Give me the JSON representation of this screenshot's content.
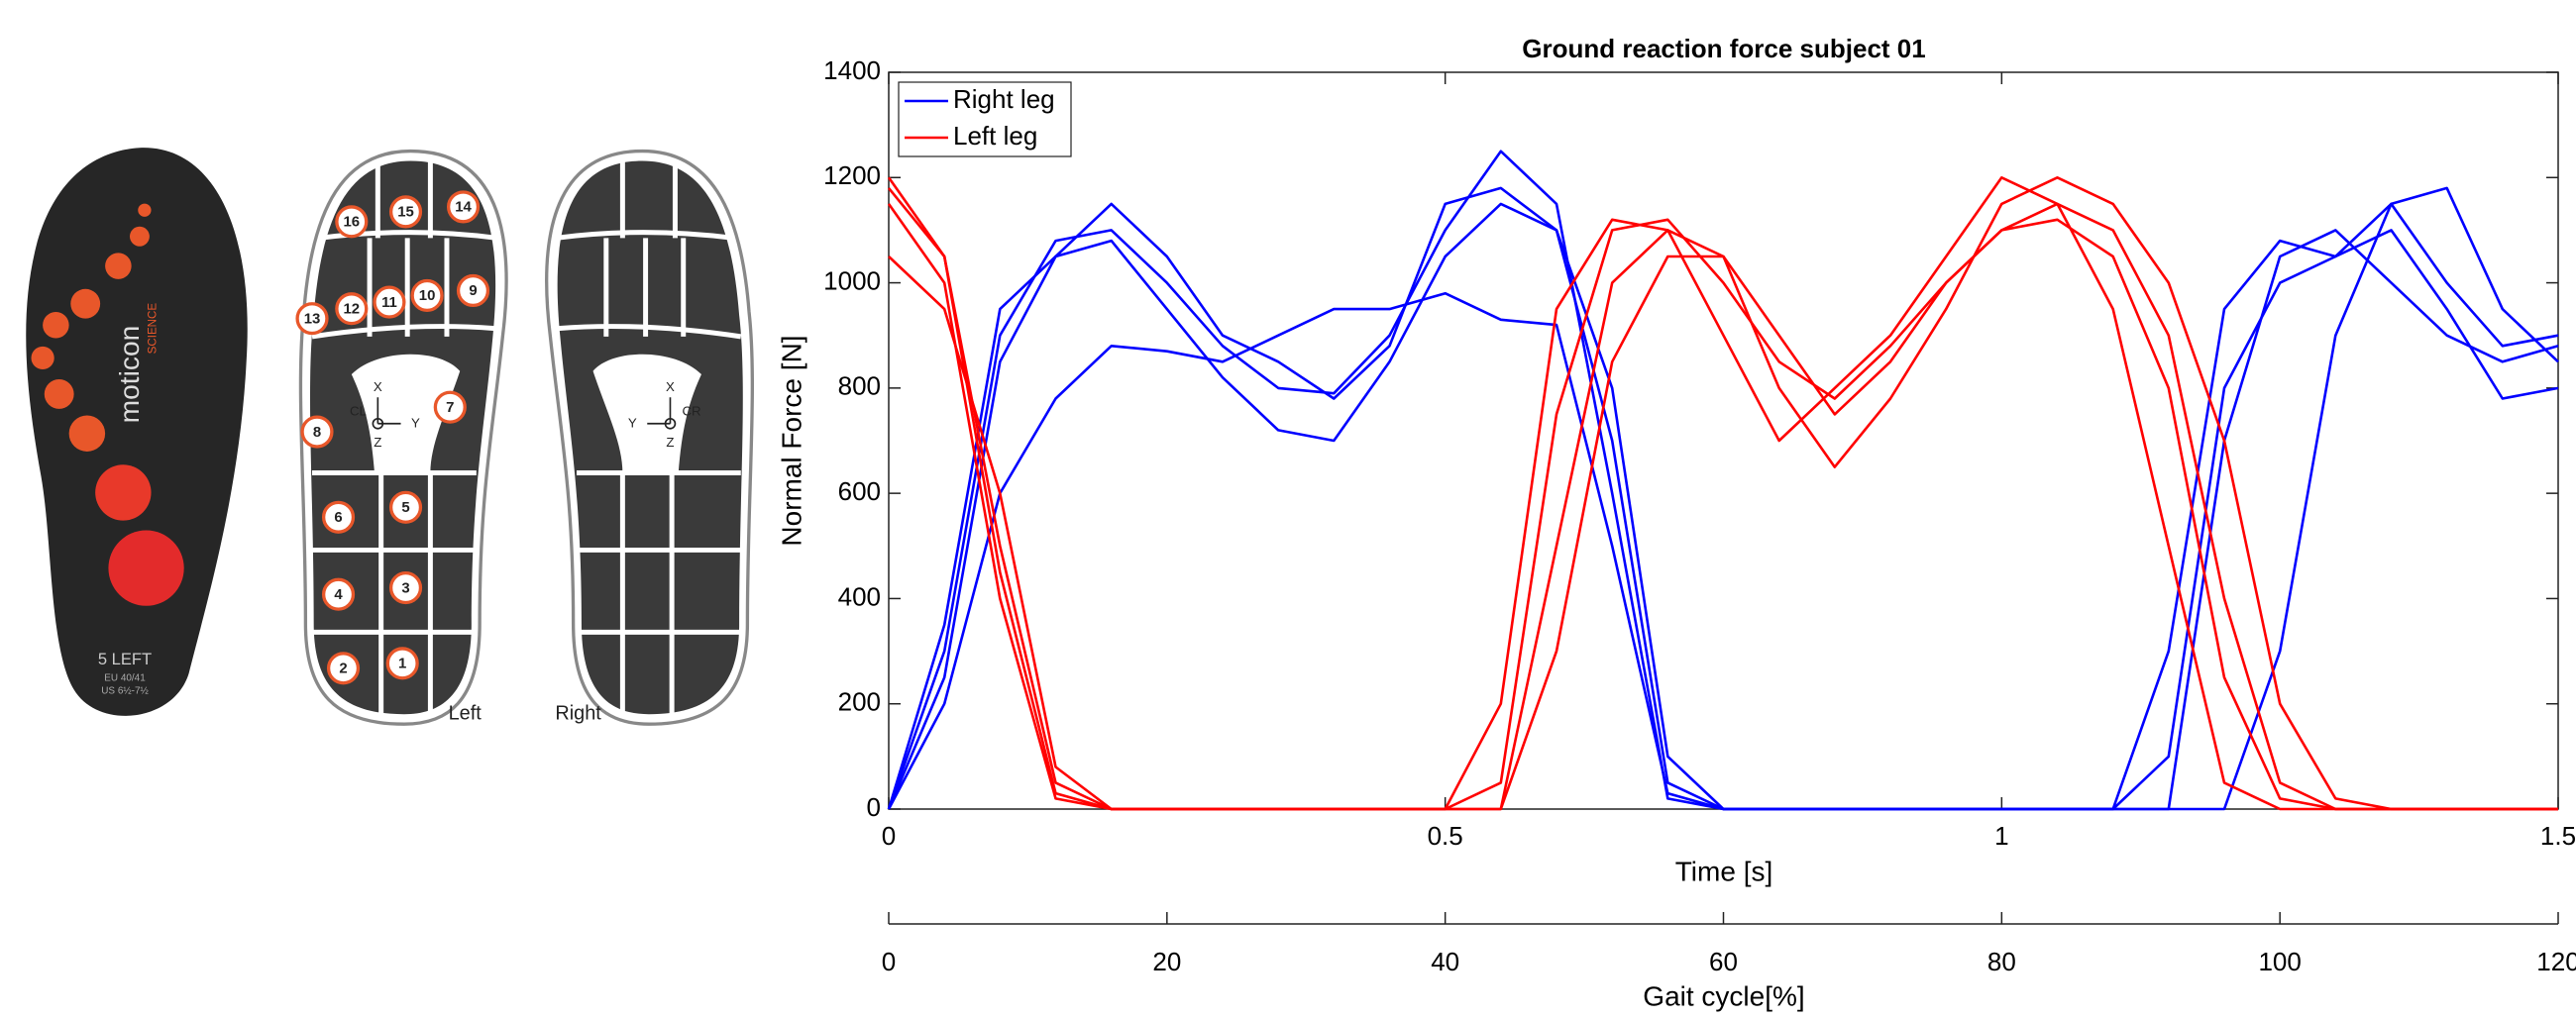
{
  "chart_data": {
    "type": "line",
    "title": "Ground reaction force subject 01",
    "xlabel": "Time [s]",
    "ylabel": "Normal Force [N]",
    "x": [
      0,
      0.05,
      0.1,
      0.15,
      0.2,
      0.25,
      0.3,
      0.35,
      0.4,
      0.45,
      0.5,
      0.55,
      0.6,
      0.65,
      0.7,
      0.75,
      0.8,
      0.85,
      0.9,
      0.95,
      1,
      1.05,
      1.1,
      1.15,
      1.2,
      1.25,
      1.3,
      1.35,
      1.4,
      1.45,
      1.5
    ],
    "xlim": [
      0,
      1.5
    ],
    "xticks": [
      0,
      0.5,
      1,
      1.5
    ],
    "ylim": [
      0,
      1400
    ],
    "yticks": [
      0,
      200,
      400,
      600,
      800,
      1000,
      1200,
      1400
    ],
    "x2label": "Gait cycle[%]",
    "x2lim": [
      0,
      120
    ],
    "x2ticks": [
      0,
      20,
      40,
      60,
      80,
      100,
      120
    ],
    "legend": "upper-left",
    "series": [
      {
        "name": "Right leg",
        "color": "#0000ff",
        "values": [
          [
            0,
            300,
            900,
            1080,
            1100,
            1000,
            880,
            800,
            790,
            900,
            1100,
            1250,
            1150,
            600,
            20,
            0,
            0,
            0,
            0,
            0,
            0,
            0,
            0,
            0,
            700,
            1050,
            1100,
            1000,
            900,
            850,
            880
          ],
          [
            0,
            250,
            850,
            1050,
            1150,
            1050,
            900,
            850,
            780,
            880,
            1150,
            1180,
            1100,
            700,
            50,
            0,
            0,
            0,
            0,
            0,
            0,
            0,
            0,
            300,
            950,
            1080,
            1050,
            1150,
            1000,
            880,
            900
          ],
          [
            0,
            200,
            600,
            780,
            880,
            870,
            850,
            900,
            950,
            950,
            980,
            930,
            920,
            500,
            30,
            0,
            0,
            0,
            0,
            0,
            0,
            0,
            0,
            100,
            800,
            1000,
            1050,
            1100,
            950,
            780,
            800
          ],
          [
            0,
            350,
            950,
            1050,
            1080,
            950,
            820,
            720,
            700,
            850,
            1050,
            1150,
            1100,
            800,
            100,
            0,
            0,
            0,
            0,
            0,
            0,
            0,
            0,
            0,
            0,
            300,
            900,
            1150,
            1180,
            950,
            850
          ]
        ]
      },
      {
        "name": "Left leg",
        "color": "#ff0000",
        "values": [
          [
            1150,
            1000,
            400,
            20,
            0,
            0,
            0,
            0,
            0,
            0,
            0,
            200,
            950,
            1120,
            1100,
            900,
            700,
            800,
            900,
            1050,
            1200,
            1150,
            950,
            500,
            50,
            0,
            0,
            0,
            0,
            0,
            0
          ],
          [
            1200,
            1050,
            500,
            50,
            0,
            0,
            0,
            0,
            0,
            0,
            0,
            0,
            500,
            1000,
            1100,
            1050,
            900,
            750,
            850,
            1000,
            1100,
            1150,
            1100,
            900,
            400,
            50,
            0,
            0,
            0,
            0,
            0
          ],
          [
            1050,
            950,
            600,
            80,
            0,
            0,
            0,
            0,
            0,
            0,
            0,
            0,
            300,
            850,
            1050,
            1050,
            800,
            650,
            780,
            950,
            1150,
            1200,
            1150,
            1000,
            700,
            200,
            20,
            0,
            0,
            0,
            0
          ],
          [
            1180,
            1050,
            450,
            30,
            0,
            0,
            0,
            0,
            0,
            0,
            0,
            50,
            750,
            1100,
            1120,
            1000,
            850,
            780,
            880,
            1000,
            1100,
            1120,
            1050,
            800,
            250,
            20,
            0,
            0,
            0,
            0,
            0
          ]
        ]
      }
    ]
  },
  "insole": {
    "brand": "moticon",
    "sub": "SCIENCE",
    "size": "5 LEFT",
    "eu": "EU 40/41",
    "us": "US 6½-7½",
    "sensors": [
      "1",
      "2",
      "3",
      "4",
      "5",
      "6",
      "7",
      "8",
      "9",
      "10",
      "11",
      "12",
      "13",
      "14",
      "15",
      "16"
    ],
    "sides": [
      "Left",
      "Right"
    ],
    "axes": {
      "x": "X",
      "y": "Y",
      "z": "Z",
      "cl": "CL",
      "cr": "CR"
    }
  }
}
